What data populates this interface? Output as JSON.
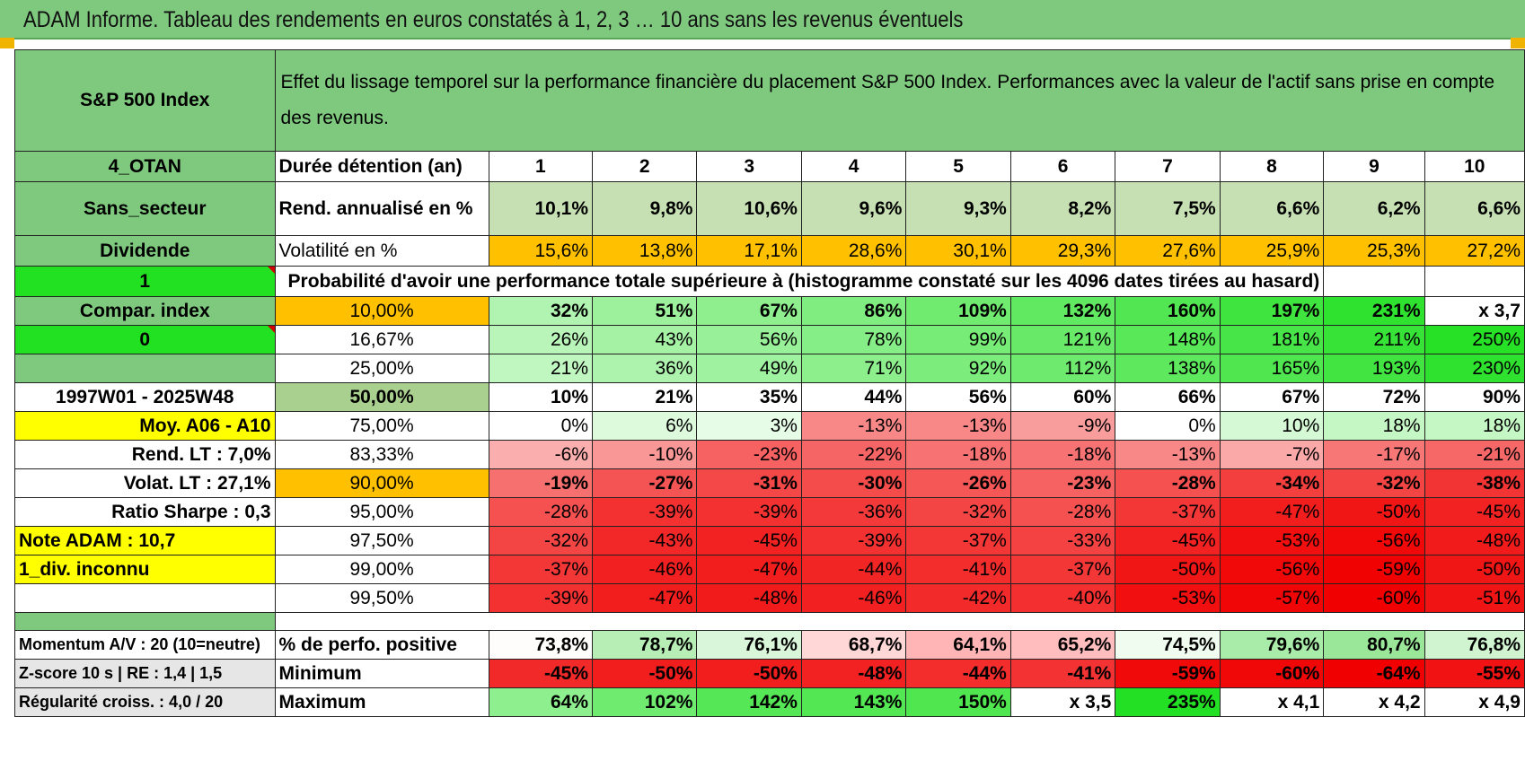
{
  "title": "ADAM Informe. Tableau des rendements en euros constatés à 1, 2, 3 … 10 ans sans les revenus éventuels",
  "header": {
    "asset": "S&P 500 Index",
    "description": "Effet du lissage temporel sur la performance financière du placement S&P 500 Index. Performances avec la valeur de l'actif sans prise en compte des revenus."
  },
  "durations_label": "Durée détention (an)",
  "durations": [
    "1",
    "2",
    "3",
    "4",
    "5",
    "6",
    "7",
    "8",
    "9",
    "10"
  ],
  "side": {
    "code": "4_OTAN",
    "sector": "Sans_secteur",
    "dividend": "Dividende",
    "one": "1",
    "compar": "Compar. index",
    "zero": "0",
    "period": "1997W01 - 2025W48",
    "moy": "Moy. A06 - A10",
    "rend_lt": "Rend. LT :    7,0%",
    "volat_lt": "Volat. LT :    27,1%",
    "sharpe": "Ratio Sharpe :     0,3",
    "note": "Note ADAM : 10,7",
    "div": "1_div. inconnu"
  },
  "rend": {
    "label": "Rend. annualisé en %",
    "values": [
      "10,1%",
      "9,8%",
      "10,6%",
      "9,6%",
      "9,3%",
      "8,2%",
      "7,5%",
      "6,6%",
      "6,2%",
      "6,6%"
    ]
  },
  "vol": {
    "label": "Volatilité en %",
    "values": [
      "15,6%",
      "13,8%",
      "17,1%",
      "28,6%",
      "30,1%",
      "29,3%",
      "27,6%",
      "25,9%",
      "25,3%",
      "27,2%"
    ]
  },
  "prob_title": "Probabilité d'avoir une performance totale supérieure à (histogramme constaté sur les 4096 dates tirées au hasard)",
  "quantiles": [
    {
      "label": "10,00%",
      "values": [
        "32%",
        "51%",
        "67%",
        "86%",
        "109%",
        "132%",
        "160%",
        "197%",
        "231%",
        "x 3,7"
      ]
    },
    {
      "label": "16,67%",
      "values": [
        "26%",
        "43%",
        "56%",
        "78%",
        "99%",
        "121%",
        "148%",
        "181%",
        "211%",
        "250%"
      ]
    },
    {
      "label": "25,00%",
      "values": [
        "21%",
        "36%",
        "49%",
        "71%",
        "92%",
        "112%",
        "138%",
        "165%",
        "193%",
        "230%"
      ]
    },
    {
      "label": "50,00%",
      "values": [
        "10%",
        "21%",
        "35%",
        "44%",
        "56%",
        "60%",
        "66%",
        "67%",
        "72%",
        "90%"
      ]
    },
    {
      "label": "75,00%",
      "values": [
        "0%",
        "6%",
        "3%",
        "-13%",
        "-13%",
        "-9%",
        "0%",
        "10%",
        "18%",
        "18%"
      ]
    },
    {
      "label": "83,33%",
      "values": [
        "-6%",
        "-10%",
        "-23%",
        "-22%",
        "-18%",
        "-18%",
        "-13%",
        "-7%",
        "-17%",
        "-21%"
      ]
    },
    {
      "label": "90,00%",
      "values": [
        "-19%",
        "-27%",
        "-31%",
        "-30%",
        "-26%",
        "-23%",
        "-28%",
        "-34%",
        "-32%",
        "-38%"
      ]
    },
    {
      "label": "95,00%",
      "values": [
        "-28%",
        "-39%",
        "-39%",
        "-36%",
        "-32%",
        "-28%",
        "-37%",
        "-47%",
        "-50%",
        "-45%"
      ]
    },
    {
      "label": "97,50%",
      "values": [
        "-32%",
        "-43%",
        "-45%",
        "-39%",
        "-37%",
        "-33%",
        "-45%",
        "-53%",
        "-56%",
        "-48%"
      ]
    },
    {
      "label": "99,00%",
      "values": [
        "-37%",
        "-46%",
        "-47%",
        "-44%",
        "-41%",
        "-37%",
        "-50%",
        "-56%",
        "-59%",
        "-50%"
      ]
    },
    {
      "label": "99,50%",
      "values": [
        "-39%",
        "-47%",
        "-48%",
        "-46%",
        "-42%",
        "-40%",
        "-53%",
        "-57%",
        "-60%",
        "-51%"
      ]
    }
  ],
  "bottom": [
    {
      "side": "Momentum A/V : 20 (10=neutre)",
      "label": "% de perfo. positive",
      "values": [
        "73,8%",
        "78,7%",
        "76,1%",
        "68,7%",
        "64,1%",
        "65,2%",
        "74,5%",
        "79,6%",
        "80,7%",
        "76,8%"
      ]
    },
    {
      "side": "Z-score 10 s | RE : 1,4  |  1,5",
      "label": "Minimum",
      "values": [
        "-45%",
        "-50%",
        "-50%",
        "-48%",
        "-44%",
        "-41%",
        "-59%",
        "-60%",
        "-64%",
        "-55%"
      ]
    },
    {
      "side": "Régularité croiss. : 4,0 / 20",
      "label": "Maximum",
      "values": [
        "64%",
        "102%",
        "142%",
        "143%",
        "150%",
        "x 3,5",
        "235%",
        "x 4,1",
        "x 4,2",
        "x 4,9"
      ]
    }
  ],
  "colors": {
    "header_green": "#7fc97f",
    "bright_green": "#22e022",
    "highlight_yellow": "#ffff00",
    "orange": "#ffc000",
    "label_red": "#e00000"
  }
}
